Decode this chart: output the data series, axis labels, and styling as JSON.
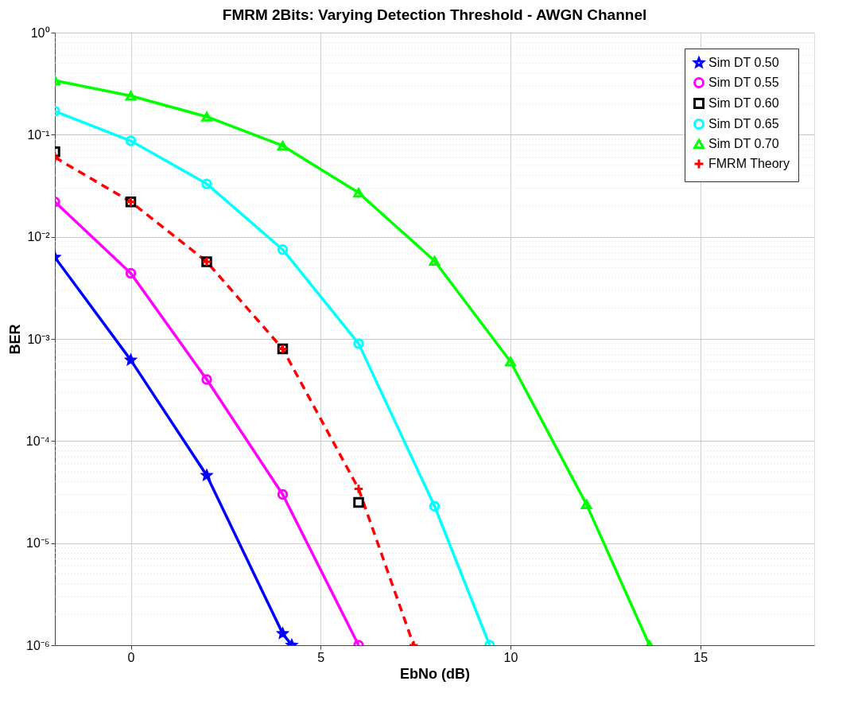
{
  "chart_data": {
    "type": "line",
    "title": "FMRM 2Bits: Varying Detection Threshold - AWGN Channel",
    "xlabel": "EbNo (dB)",
    "ylabel": "BER",
    "log": "y",
    "grid": true,
    "legend": "top right",
    "xlim": [
      -2,
      18
    ],
    "xticks": [
      0,
      5,
      10,
      15
    ],
    "ylim": [
      1e-06,
      1
    ],
    "yticks": [
      {
        "value": 1e-06,
        "label": "10⁻⁶"
      },
      {
        "value": 1e-05,
        "label": "10⁻⁵"
      },
      {
        "value": 0.0001,
        "label": "10⁻⁴"
      },
      {
        "value": 0.001,
        "label": "10⁻³"
      },
      {
        "value": 0.01,
        "label": "10⁻²"
      },
      {
        "value": 0.1,
        "label": "10⁻¹"
      },
      {
        "value": 1,
        "label": "10⁰"
      }
    ],
    "series": [
      {
        "name": "Sim DT 0.50",
        "color": "#0000ff",
        "marker": "star",
        "line_style": "solid",
        "x": [
          -2,
          0,
          2,
          4,
          4.24
        ],
        "values": [
          0.0063,
          0.00062,
          4.6e-05,
          1.3e-06,
          1e-06
        ]
      },
      {
        "name": "Sim DT 0.55",
        "color": "#ff00ff",
        "marker": "circle",
        "line_style": "solid",
        "x": [
          -2,
          0,
          2,
          4,
          6
        ],
        "values": [
          0.022,
          0.0044,
          0.0004,
          3e-05,
          1e-06
        ]
      },
      {
        "name": "Sim DT 0.60",
        "type": "scatter",
        "color": "#000000",
        "marker": "square",
        "x": [
          -2,
          0,
          2,
          4,
          6
        ],
        "values": [
          0.068,
          0.022,
          0.0057,
          0.0008,
          2.5e-05
        ]
      },
      {
        "name": "Sim DT 0.65",
        "color": "#00ffff",
        "marker": "circle",
        "line_style": "solid",
        "x": [
          -2,
          0,
          2,
          4,
          6,
          8,
          9.45
        ],
        "values": [
          0.17,
          0.087,
          0.033,
          0.0075,
          0.0009,
          2.3e-05,
          1e-06
        ]
      },
      {
        "name": "Sim DT 0.70",
        "color": "#00ff00",
        "marker": "triangle",
        "line_style": "solid",
        "x": [
          -2,
          0,
          2,
          4,
          6,
          8,
          10,
          12,
          13.66
        ],
        "values": [
          0.34,
          0.24,
          0.15,
          0.078,
          0.027,
          0.0058,
          0.0006,
          2.4e-05,
          1e-06
        ]
      },
      {
        "name": "FMRM Theory",
        "color": "#ff0000",
        "marker": "cross",
        "line_style": "dashed",
        "x": [
          -2,
          0,
          2,
          4,
          6,
          7.45
        ],
        "values": [
          0.06,
          0.022,
          0.0057,
          0.0008,
          3.4e-05,
          1e-06
        ]
      }
    ]
  }
}
